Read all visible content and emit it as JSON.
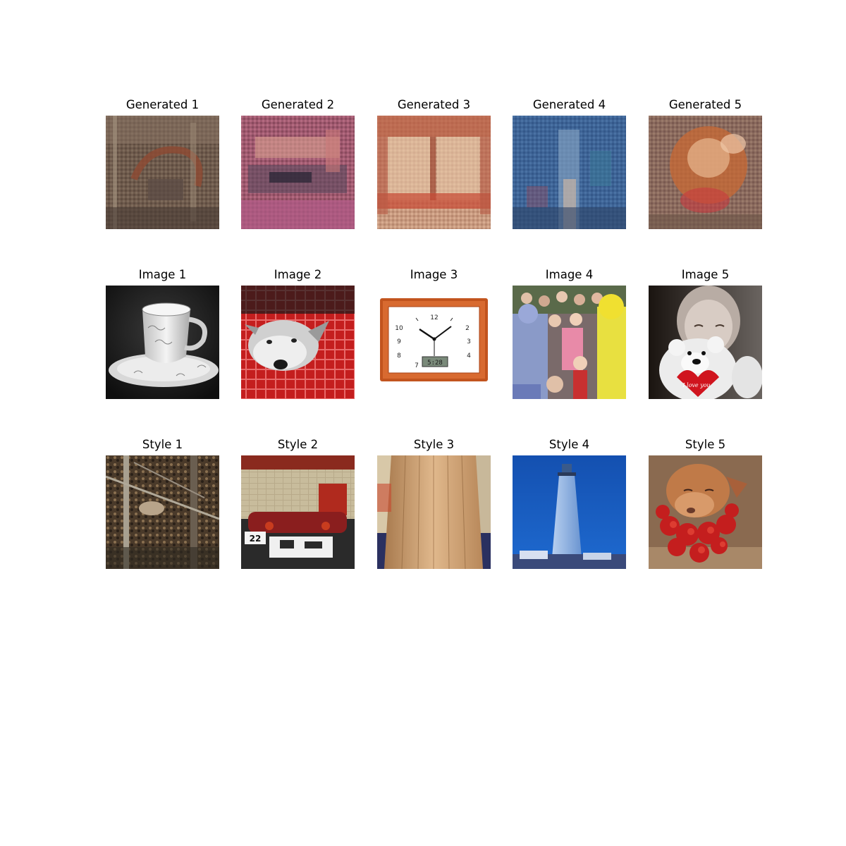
{
  "rows": [
    {
      "name": "generated",
      "titles": [
        "Generated 1",
        "Generated 2",
        "Generated 3",
        "Generated 4",
        "Generated 5"
      ]
    },
    {
      "name": "image",
      "titles": [
        "Image 1",
        "Image 2",
        "Image 3",
        "Image 4",
        "Image 5"
      ]
    },
    {
      "name": "style",
      "titles": [
        "Style 1",
        "Style 2",
        "Style 3",
        "Style 4",
        "Style 5"
      ]
    }
  ],
  "clock": {
    "n12": "12",
    "n2": "2",
    "n3": "3",
    "n4": "4",
    "n9": "9",
    "n10": "10",
    "n8": "8",
    "n7": "7",
    "digital": "5:28"
  },
  "bear_heart_text": "I love you",
  "style2_plate": "22"
}
